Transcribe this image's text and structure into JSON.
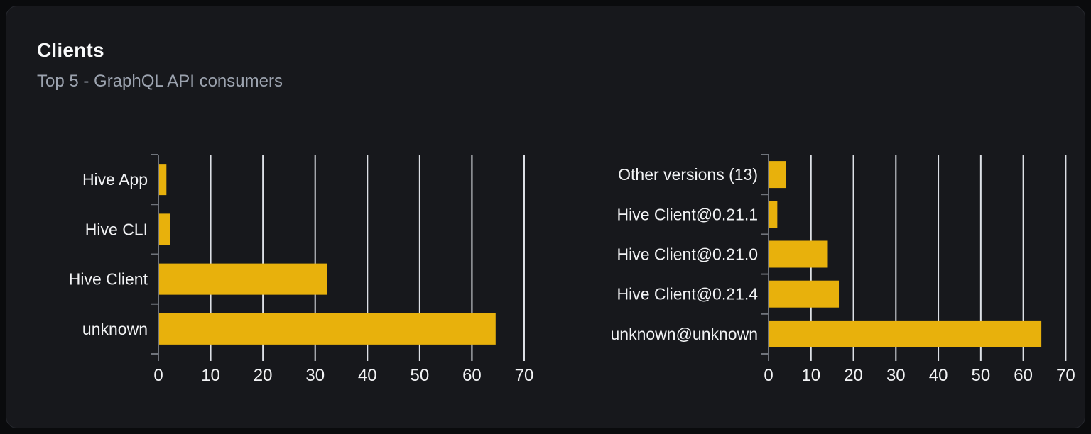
{
  "card": {
    "title": "Clients",
    "subtitle": "Top 5 - GraphQL API consumers"
  },
  "colors": {
    "page_bg": "#0a0b0d",
    "card_bg": "#17181c",
    "card_border": "#26282e",
    "title": "#f8f9fa",
    "subtitle": "#9ca3af",
    "bar": "#e8b10c",
    "gridline": "#dde0e6",
    "axis": "#6f737b",
    "label": "#f2f3f5"
  },
  "chart_data": [
    {
      "type": "bar",
      "orientation": "horizontal",
      "title": "",
      "xlabel": "",
      "ylabel": "",
      "categories": [
        "Hive App",
        "Hive CLI",
        "Hive Client",
        "unknown"
      ],
      "values": [
        1.4,
        2.1,
        32.1,
        64.4
      ],
      "xlim": [
        0,
        70
      ],
      "x_ticks": [
        0,
        10,
        20,
        30,
        40,
        50,
        60,
        70
      ],
      "grid": "vertical",
      "legend": "none"
    },
    {
      "type": "bar",
      "orientation": "horizontal",
      "title": "",
      "xlabel": "",
      "ylabel": "",
      "categories": [
        "Other versions (13)",
        "Hive Client@0.21.1",
        "Hive Client@0.21.0",
        "Hive Client@0.21.4",
        "unknown@unknown"
      ],
      "values": [
        3.9,
        1.9,
        13.8,
        16.4,
        64.1
      ],
      "xlim": [
        0,
        70
      ],
      "x_ticks": [
        0,
        10,
        20,
        30,
        40,
        50,
        60,
        70
      ],
      "grid": "vertical",
      "legend": "none"
    }
  ]
}
